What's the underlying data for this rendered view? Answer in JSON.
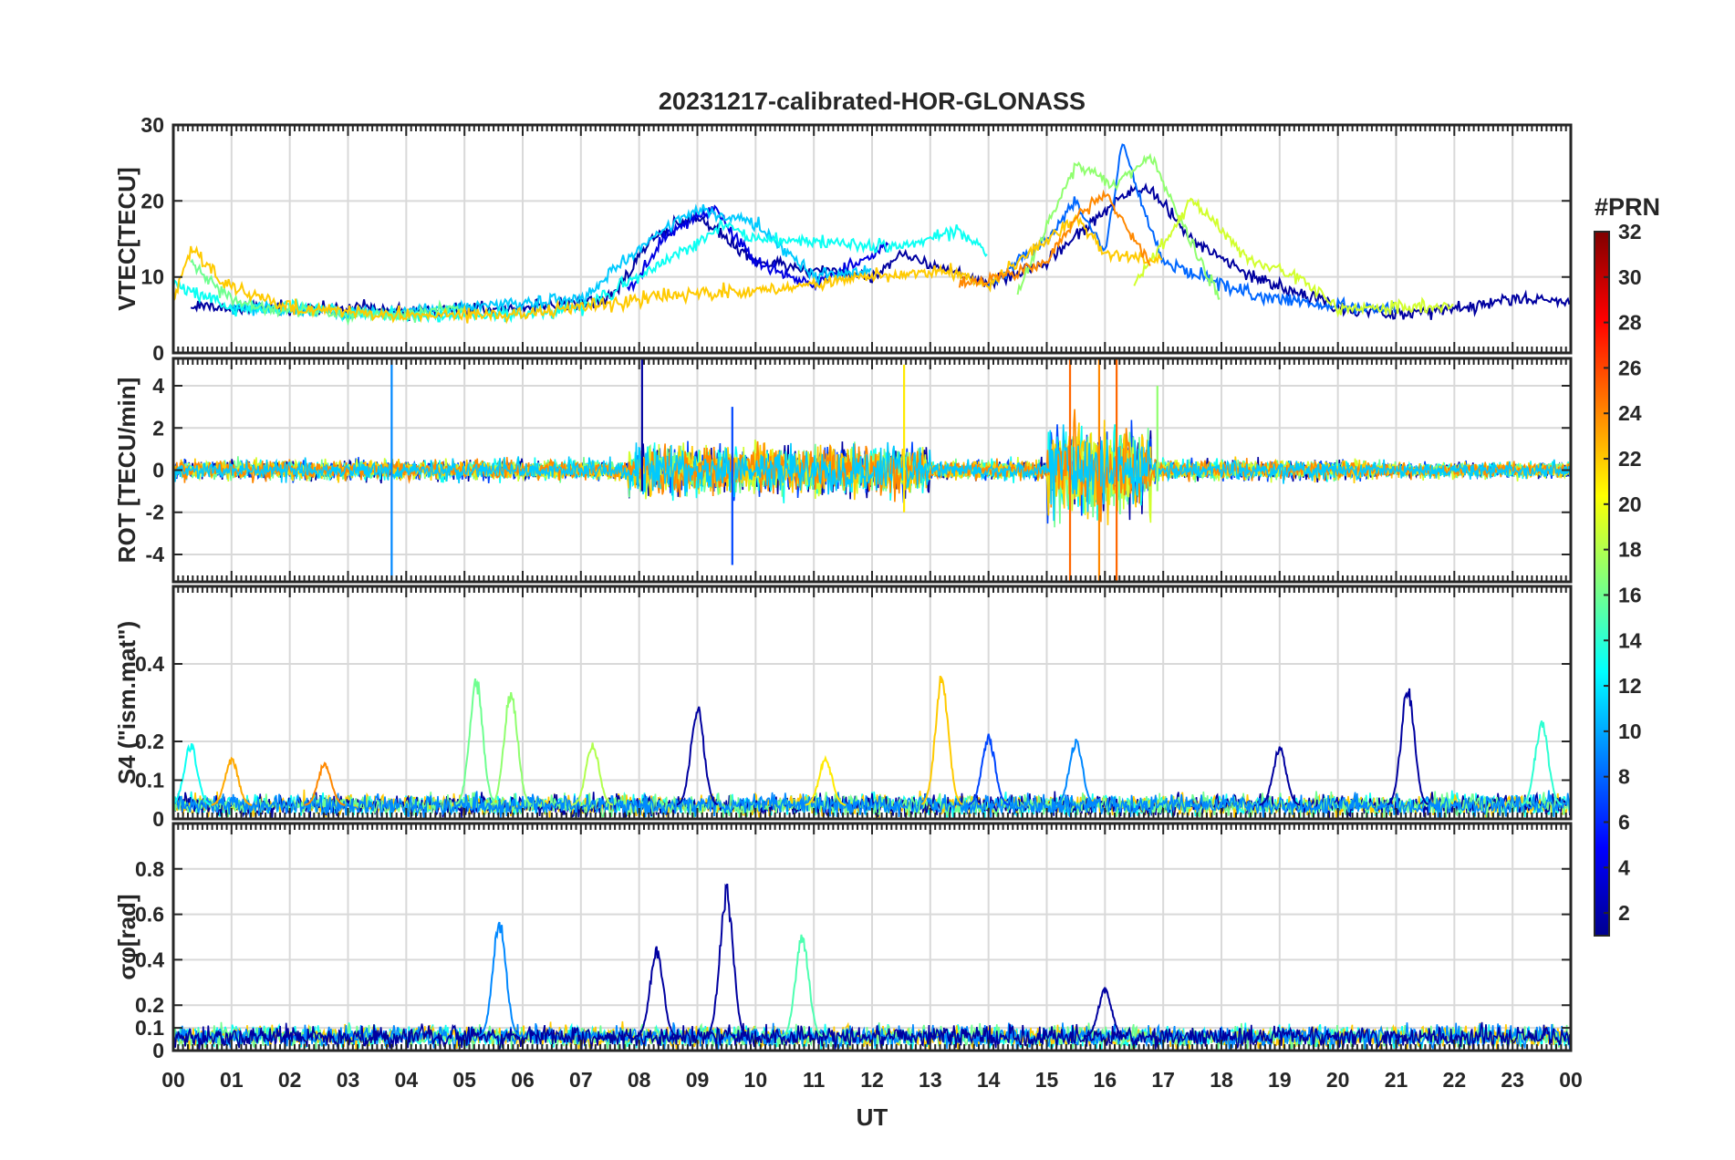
{
  "chart_data": {
    "type": "line",
    "title": "20231217-calibrated-HOR-GLONASS",
    "xlabel": "UT",
    "x_range_hours": [
      0,
      24
    ],
    "x_tick_labels": [
      "00",
      "01",
      "02",
      "03",
      "04",
      "05",
      "06",
      "07",
      "08",
      "09",
      "10",
      "11",
      "12",
      "13",
      "14",
      "15",
      "16",
      "17",
      "18",
      "19",
      "20",
      "21",
      "22",
      "23",
      "00"
    ],
    "grid": true,
    "colormap": "jet",
    "colorbar": {
      "title": "#PRN",
      "range": [
        1,
        32
      ],
      "tick_values": [
        2,
        4,
        6,
        8,
        10,
        12,
        14,
        16,
        18,
        20,
        22,
        24,
        26,
        28,
        30,
        32
      ],
      "tick_labels": [
        "2",
        "4",
        "6",
        "8",
        "10",
        "12",
        "14",
        "16",
        "18",
        "20",
        "22",
        "24",
        "26",
        "28",
        "30",
        "32"
      ]
    },
    "panels": [
      {
        "id": "vtec",
        "ylabel": "VTEC[TECU]",
        "ylim": [
          0,
          30
        ],
        "y_ticks": [
          0,
          10,
          20,
          30
        ],
        "y_tick_labels": [
          "0",
          "10",
          "20",
          "30"
        ],
        "series": [
          {
            "prn": 2,
            "x": [
              0.3,
              2,
              4,
              6,
              7.5,
              8.2,
              9,
              10,
              11,
              12,
              12.5,
              14,
              15,
              16.2,
              16.7,
              17.5,
              18.5,
              20,
              21,
              22,
              23,
              24
            ],
            "y": [
              6,
              6,
              5.5,
              6,
              7,
              15,
              18,
              12,
              11,
              10,
              13,
              9,
              12,
              20,
              22,
              15,
              10,
              6,
              5,
              6,
              7,
              7
            ]
          },
          {
            "prn": 4,
            "x": [
              7.8,
              8.5,
              9.3,
              10,
              11,
              12.3
            ],
            "y": [
              8,
              16,
              19,
              12,
              9,
              14
            ]
          },
          {
            "prn": 8,
            "x": [
              14,
              15,
              15.5,
              16,
              16.3,
              16.6,
              17,
              18,
              19,
              20,
              21
            ],
            "y": [
              9,
              15,
              20,
              13,
              28,
              20,
              12,
              9,
              7,
              6,
              6
            ]
          },
          {
            "prn": 11,
            "x": [
              1,
              3,
              5,
              7,
              8.2,
              9,
              10,
              11,
              12
            ],
            "y": [
              6,
              5,
              6,
              7,
              15,
              19,
              17,
              10,
              11
            ]
          },
          {
            "prn": 13,
            "x": [
              0,
              1,
              2,
              4,
              6,
              7,
              8,
              9.5,
              10,
              12.5,
              13.5,
              14
            ],
            "y": [
              9,
              6,
              6,
              5,
              5,
              6,
              10,
              17,
              15,
              14,
              16,
              13
            ]
          },
          {
            "prn": 16,
            "x": [
              0.3,
              1,
              1.5,
              3,
              4,
              5
            ],
            "y": [
              12,
              7,
              6,
              5,
              5,
              6
            ]
          },
          {
            "prn": 17,
            "x": [
              14.5,
              15.5,
              16.2,
              16.8,
              17.5,
              18
            ],
            "y": [
              8,
              25,
              22,
              26,
              14,
              7
            ]
          },
          {
            "prn": 19,
            "x": [
              16.5,
              17.5,
              18.5,
              19.3,
              20,
              21,
              22
            ],
            "y": [
              9,
              20,
              12,
              10,
              6,
              6,
              6
            ]
          },
          {
            "prn": 22,
            "x": [
              0,
              0.3,
              0.9,
              2,
              3.5,
              6,
              9,
              10,
              12,
              13.2,
              14,
              15.5,
              16,
              17
            ],
            "y": [
              7,
              14,
              9,
              6,
              5,
              5,
              8,
              8,
              10,
              11,
              9,
              18,
              13,
              12
            ]
          },
          {
            "prn": 24,
            "x": [
              13.5,
              14.2,
              15,
              15.5,
              16,
              16.8
            ],
            "y": [
              9,
              10,
              12,
              18,
              21,
              11
            ]
          }
        ]
      },
      {
        "id": "rot",
        "ylabel": "ROT [TECU/min]",
        "ylim": [
          -5.3,
          5.3
        ],
        "y_ticks": [
          -4,
          -2,
          0,
          2,
          4
        ],
        "y_tick_labels": [
          "-4",
          "-2",
          "0",
          "2",
          "4"
        ],
        "spikes": [
          {
            "prn": 9,
            "x": 3.75,
            "y": [
              -5.3,
              5.3
            ]
          },
          {
            "prn": 2,
            "x": 8.05,
            "y": [
              -1,
              5.3
            ]
          },
          {
            "prn": 7,
            "x": 9.6,
            "y": [
              -4.5,
              3
            ]
          },
          {
            "prn": 21,
            "x": 12.55,
            "y": [
              -2,
              5
            ]
          },
          {
            "prn": 25,
            "x": 15.4,
            "y": [
              -5.3,
              5.3
            ]
          },
          {
            "prn": 24,
            "x": 15.9,
            "y": [
              -5.3,
              5.3
            ]
          },
          {
            "prn": 25,
            "x": 16.2,
            "y": [
              -5.3,
              5.3
            ]
          },
          {
            "prn": 17,
            "x": 16.9,
            "y": [
              -1,
              4
            ]
          }
        ]
      },
      {
        "id": "s4",
        "ylabel": "S4 (\"ism.mat\")",
        "ylim": [
          0,
          0.6
        ],
        "y_ticks": [
          0,
          0.1,
          0.2,
          0.4
        ],
        "y_tick_labels": [
          "0",
          "0.1",
          "0.2",
          "0.4"
        ],
        "peaks": [
          {
            "prn": 13,
            "x": 0.3,
            "y": 0.2
          },
          {
            "prn": 23,
            "x": 1.0,
            "y": 0.16
          },
          {
            "prn": 24,
            "x": 2.6,
            "y": 0.15
          },
          {
            "prn": 16,
            "x": 5.2,
            "y": 0.38
          },
          {
            "prn": 17,
            "x": 5.8,
            "y": 0.35
          },
          {
            "prn": 18,
            "x": 7.2,
            "y": 0.2
          },
          {
            "prn": 2,
            "x": 9.0,
            "y": 0.3
          },
          {
            "prn": 21,
            "x": 11.2,
            "y": 0.16
          },
          {
            "prn": 22,
            "x": 13.2,
            "y": 0.38
          },
          {
            "prn": 7,
            "x": 14.0,
            "y": 0.22
          },
          {
            "prn": 9,
            "x": 15.5,
            "y": 0.21
          },
          {
            "prn": 2,
            "x": 19.0,
            "y": 0.19
          },
          {
            "prn": 2,
            "x": 21.2,
            "y": 0.35
          },
          {
            "prn": 14,
            "x": 23.5,
            "y": 0.26
          }
        ]
      },
      {
        "id": "sigma_phi",
        "ylabel": "σφ[rad]",
        "ylim": [
          0,
          1.0
        ],
        "y_ticks": [
          0,
          0.1,
          0.2,
          0.4,
          0.6,
          0.8
        ],
        "y_tick_labels": [
          "0",
          "0.1",
          "0.2",
          "0.4",
          "0.6",
          "0.8"
        ],
        "peaks": [
          {
            "prn": 9,
            "x": 5.6,
            "y": 0.6
          },
          {
            "prn": 2,
            "x": 8.3,
            "y": 0.46
          },
          {
            "prn": 2,
            "x": 9.5,
            "y": 0.74
          },
          {
            "prn": 15,
            "x": 10.8,
            "y": 0.53
          },
          {
            "prn": 2,
            "x": 16.0,
            "y": 0.28
          }
        ]
      }
    ]
  }
}
